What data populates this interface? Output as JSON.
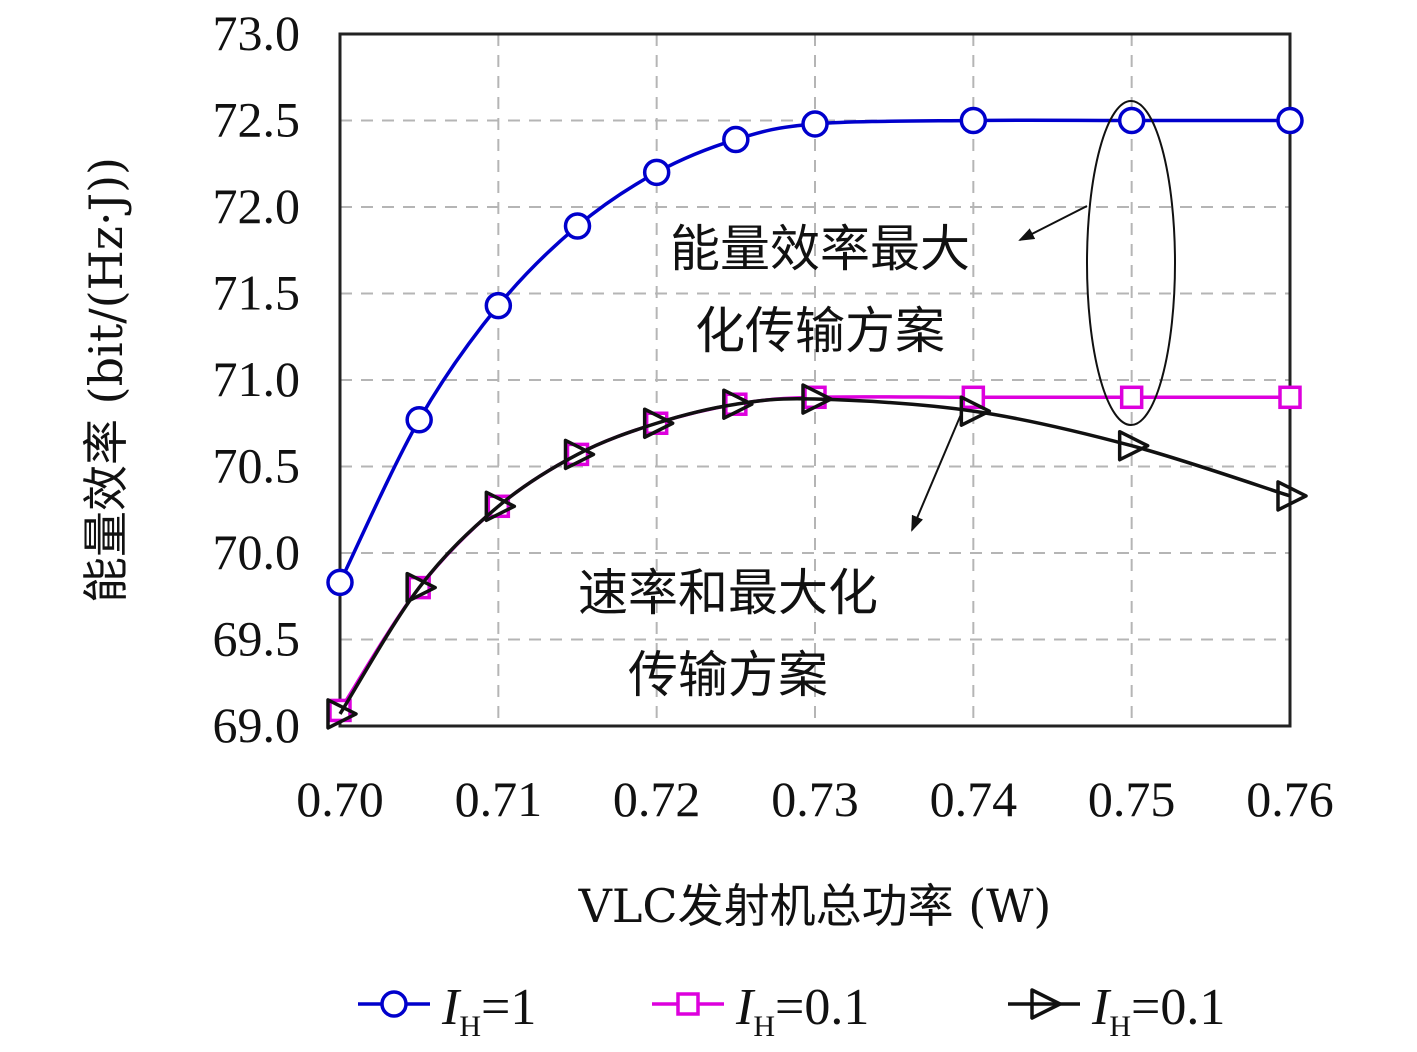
{
  "chart_data": {
    "type": "line",
    "xlabel": "VLC发射机总功率 (W)",
    "ylabel": "能量效率 (bit/(Hz·J))",
    "xlim": [
      0.7,
      0.76
    ],
    "ylim": [
      69.0,
      73.0
    ],
    "x_ticks": [
      "0.70",
      "0.71",
      "0.72",
      "0.73",
      "0.74",
      "0.75",
      "0.76"
    ],
    "y_ticks": [
      "69.0",
      "69.5",
      "70.0",
      "70.5",
      "71.0",
      "71.5",
      "72.0",
      "72.5",
      "73.0"
    ],
    "grid": true,
    "legend_position": "bottom",
    "series": [
      {
        "name": "I_H=1",
        "legend_var": "I",
        "legend_sub": "H",
        "legend_eq": "=1",
        "color": "#0000cc",
        "marker": "circle",
        "x": [
          0.7,
          0.705,
          0.71,
          0.715,
          0.72,
          0.725,
          0.73,
          0.74,
          0.75,
          0.76
        ],
        "y": [
          69.83,
          70.77,
          71.43,
          71.89,
          72.2,
          72.39,
          72.48,
          72.5,
          72.5,
          72.5
        ]
      },
      {
        "name": "I_H=0.1",
        "legend_var": "I",
        "legend_sub": "H",
        "legend_eq": "=0.1",
        "color": "#dd00dd",
        "marker": "square",
        "x": [
          0.7,
          0.705,
          0.71,
          0.715,
          0.72,
          0.725,
          0.73,
          0.74,
          0.75,
          0.76
        ],
        "y": [
          69.09,
          69.8,
          70.27,
          70.57,
          70.75,
          70.86,
          70.9,
          70.9,
          70.9,
          70.9
        ]
      },
      {
        "name": "I_H=0.1",
        "legend_var": "I",
        "legend_sub": "H",
        "legend_eq": "=0.1",
        "color": "#111111",
        "marker": "triangle-right",
        "x": [
          0.7,
          0.705,
          0.71,
          0.715,
          0.72,
          0.725,
          0.73,
          0.74,
          0.75,
          0.76
        ],
        "y": [
          69.07,
          69.8,
          70.27,
          70.57,
          70.75,
          70.86,
          70.89,
          70.82,
          70.62,
          70.33
        ]
      }
    ],
    "annotations": [
      {
        "lines": [
          "能量效率最大",
          "化传输方案"
        ]
      },
      {
        "lines": [
          "速率和最大化",
          "传输方案"
        ]
      }
    ]
  }
}
